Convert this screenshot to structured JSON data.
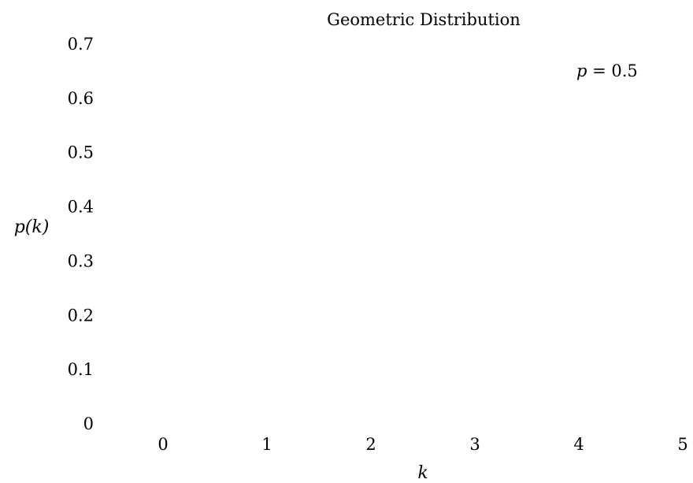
{
  "chart_data": {
    "type": "bar",
    "title": "Geometric Distribution",
    "xlabel": "k",
    "ylabel": "p(k)",
    "xlim": [
      0,
      5
    ],
    "ylim": [
      0,
      0.7
    ],
    "x_ticks": [
      "0",
      "1",
      "2",
      "3",
      "4",
      "5"
    ],
    "y_ticks": [
      "0",
      "0.1",
      "0.2",
      "0.3",
      "0.4",
      "0.5",
      "0.6",
      "0.7"
    ],
    "grid": false,
    "annotation": {
      "text_var": "p",
      "text_rest": " = 0.5",
      "position": "top-right"
    },
    "series": [],
    "colors": {
      "text": "#000000",
      "background": "#ffffff"
    }
  }
}
